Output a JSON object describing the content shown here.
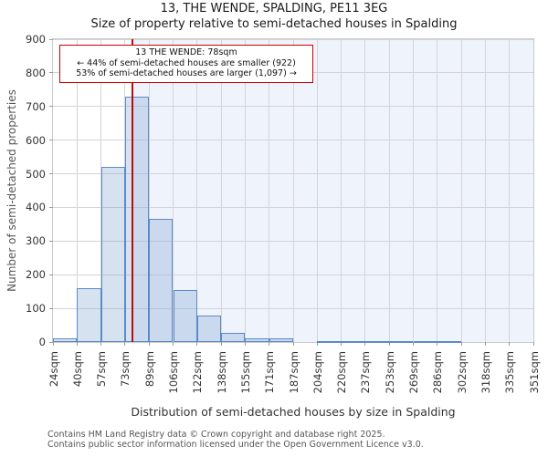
{
  "page": {
    "title": "13, THE WENDE, SPALDING, PE11 3EG",
    "subtitle": "Size of property relative to semi-detached houses in Spalding"
  },
  "annotation": {
    "line1": "13 THE WENDE: 78sqm",
    "line2": "← 44% of semi-detached houses are smaller (922)",
    "line3": "53% of semi-detached houses are larger (1,097) →"
  },
  "footer": {
    "line1": "Contains HM Land Registry data © Crown copyright and database right 2025.",
    "line2": "Contains public sector information licensed under the Open Government Licence v3.0."
  },
  "chart_data": {
    "type": "bar",
    "title": "13, THE WENDE, SPALDING, PE11 3EG",
    "subtitle": "Size of property relative to semi-detached houses in Spalding",
    "xlabel": "Distribution of semi-detached houses by size in Spalding",
    "ylabel": "Number of semi-detached properties",
    "bin_edges_sqm": [
      24,
      40,
      57,
      73,
      89,
      106,
      122,
      138,
      155,
      171,
      187,
      204,
      220,
      237,
      253,
      269,
      286,
      302,
      318,
      335,
      351
    ],
    "x_tick_labels": [
      "24sqm",
      "40sqm",
      "57sqm",
      "73sqm",
      "89sqm",
      "106sqm",
      "122sqm",
      "138sqm",
      "155sqm",
      "171sqm",
      "187sqm",
      "204sqm",
      "220sqm",
      "237sqm",
      "253sqm",
      "269sqm",
      "286sqm",
      "302sqm",
      "318sqm",
      "335sqm",
      "351sqm"
    ],
    "values": [
      10,
      160,
      520,
      730,
      365,
      155,
      78,
      27,
      10,
      10,
      0,
      3,
      3,
      3,
      3,
      3,
      3,
      0,
      0,
      0
    ],
    "ylim": [
      0,
      900
    ],
    "y_ticks": [
      0,
      100,
      200,
      300,
      400,
      500,
      600,
      700,
      800,
      900
    ],
    "grid": true,
    "legend": "none",
    "marker": {
      "value_sqm": 78,
      "label": "13 THE WENDE: 78sqm",
      "smaller_pct": 44,
      "smaller_count": 922,
      "larger_pct": 53,
      "larger_count": 1097
    },
    "colors": {
      "bar_fill": "rgba(110,150,205,0.28)",
      "bar_border": "#5b8ac5",
      "shaded_region": "#eff3fb",
      "grid": "#d4d4da",
      "marker_line": "#bb0c0c",
      "annotation_border": "#cc0000",
      "tick": "#999999"
    }
  }
}
